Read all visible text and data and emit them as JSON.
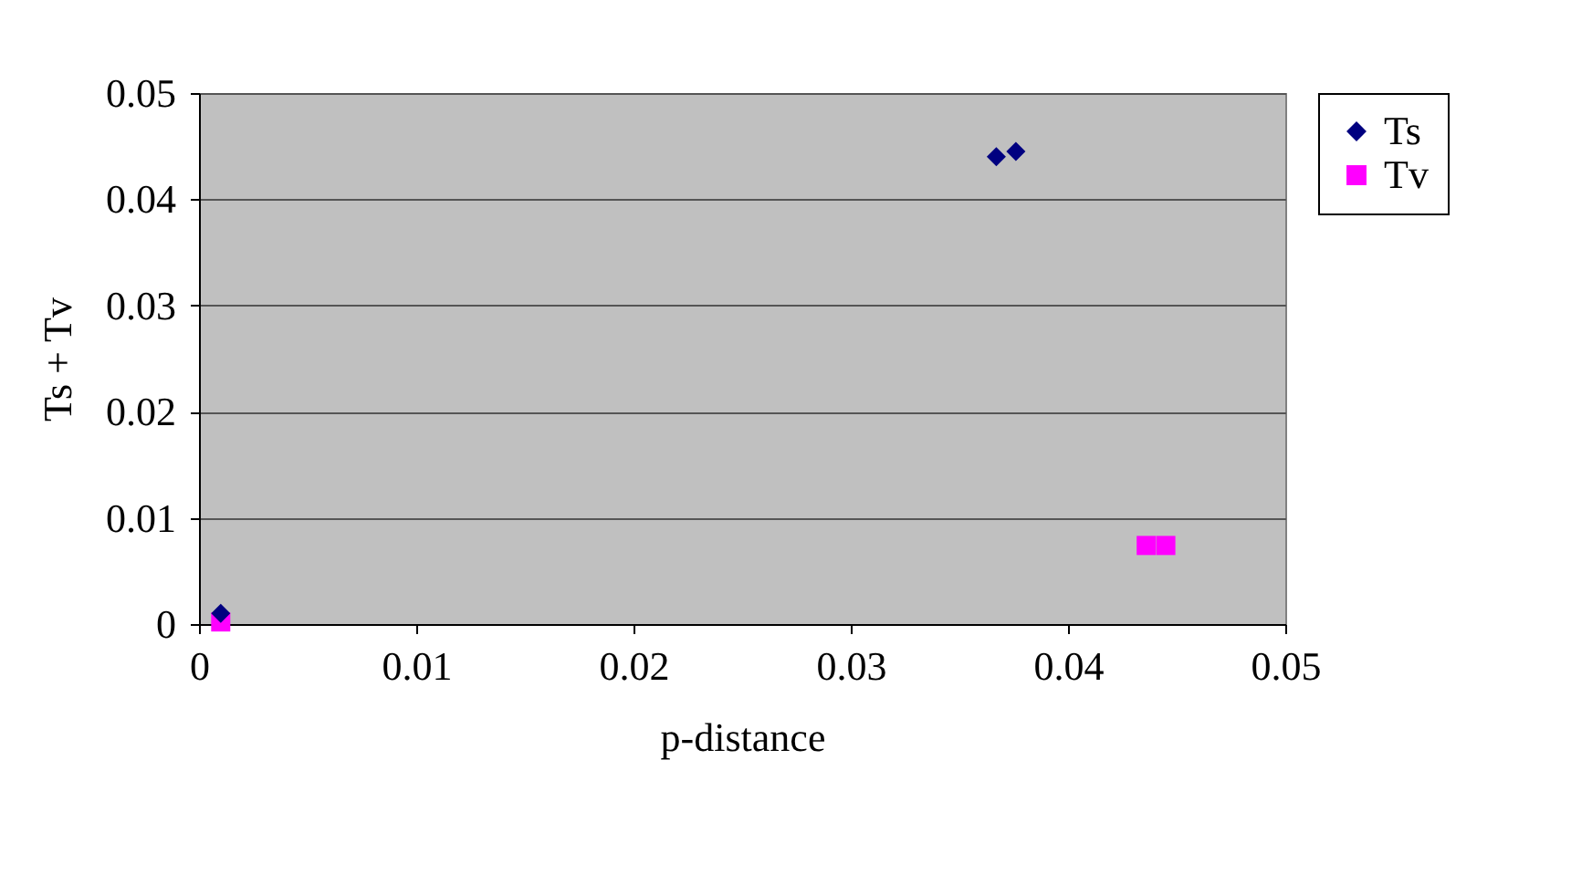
{
  "chart_data": {
    "type": "scatter",
    "xlabel": "p-distance",
    "ylabel": "Ts + Tv",
    "xlim": [
      0,
      0.05
    ],
    "xticks": [
      0,
      0.01,
      0.02,
      0.03,
      0.04,
      0.05
    ],
    "ylim": [
      0,
      0.05
    ],
    "yticks": [
      0,
      0.01,
      0.02,
      0.03,
      0.04,
      0.05
    ],
    "grid": "y",
    "legend": "right",
    "series": [
      {
        "name": "Ts",
        "color": "#000080",
        "marker": "diamond",
        "x": [
          0.001,
          0.0367,
          0.0376
        ],
        "values": [
          0.001,
          0.044,
          0.0445
        ]
      },
      {
        "name": "Tv",
        "color": "#ff00ff",
        "marker": "square",
        "x": [
          0.001,
          0.0436,
          0.0445
        ],
        "values": [
          0.0002,
          0.0074,
          0.0074
        ]
      }
    ]
  }
}
